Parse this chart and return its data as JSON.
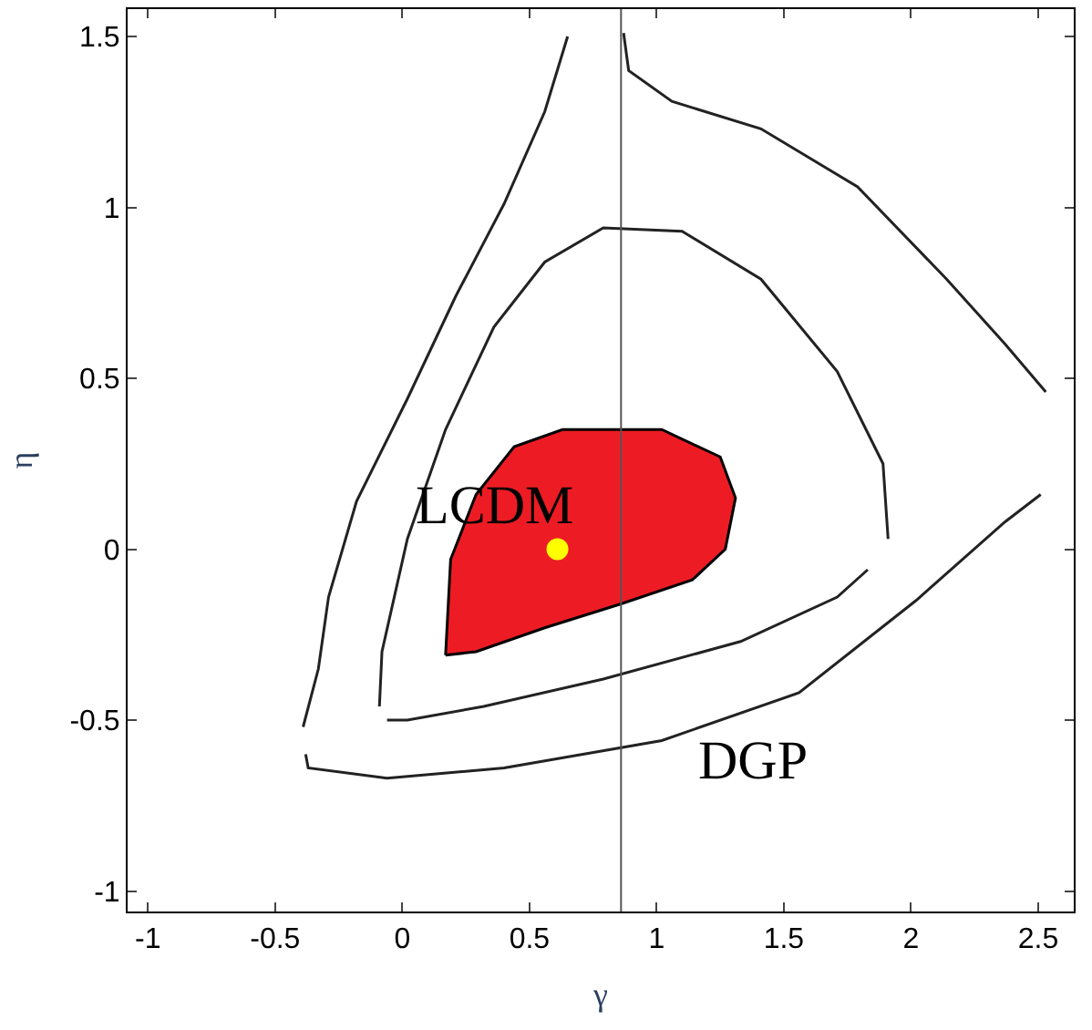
{
  "chart_data": {
    "type": "line",
    "xlabel": "γ",
    "ylabel": "η",
    "xlim": [
      -1.08,
      2.64
    ],
    "ylim": [
      -1.06,
      1.58
    ],
    "xticks": [
      -1,
      -0.5,
      0,
      0.5,
      1,
      1.5,
      2,
      2.5
    ],
    "yticks": [
      -1,
      -0.5,
      0,
      0.5,
      1,
      1.5
    ],
    "marker": "none",
    "line_style": "solid",
    "series": [
      {
        "type": "area",
        "color": "#ed1c24",
        "x": [
          0.17,
          0.19,
          0.29,
          0.44,
          0.63,
          1.02,
          1.25,
          1.31,
          1.27,
          1.14,
          0.86,
          0.56,
          0.29,
          0.17
        ],
        "values": [
          -0.31,
          -0.03,
          0.16,
          0.3,
          0.35,
          0.35,
          0.27,
          0.15,
          0.0,
          -0.09,
          -0.16,
          -0.23,
          -0.3,
          -0.31
        ]
      },
      {
        "color": "#222222",
        "x": [
          -0.09,
          -0.08,
          0.02,
          0.17,
          0.36,
          0.56,
          0.79,
          1.1,
          1.41,
          1.71,
          1.89,
          1.91
        ],
        "values": [
          -0.46,
          -0.3,
          0.03,
          0.35,
          0.65,
          0.84,
          0.94,
          0.93,
          0.79,
          0.52,
          0.25,
          0.03
        ]
      },
      {
        "color": "#222222",
        "x": [
          -0.06,
          0.02,
          0.32,
          0.79,
          1.33,
          1.71,
          1.83
        ],
        "values": [
          -0.5,
          -0.5,
          -0.46,
          -0.38,
          -0.27,
          -0.14,
          -0.06
        ]
      },
      {
        "color": "#222222",
        "x": [
          -0.39,
          -0.33,
          -0.29,
          -0.18,
          0.02,
          0.21,
          0.4,
          0.56,
          0.65
        ],
        "values": [
          -0.52,
          -0.35,
          -0.14,
          0.14,
          0.44,
          0.74,
          1.01,
          1.28,
          1.5
        ]
      },
      {
        "color": "#222222",
        "x": [
          -0.38,
          -0.37,
          -0.06,
          0.4,
          1.02,
          1.56,
          2.02,
          2.37,
          2.51
        ],
        "values": [
          -0.6,
          -0.64,
          -0.67,
          -0.64,
          -0.56,
          -0.42,
          -0.15,
          0.08,
          0.16
        ]
      },
      {
        "color": "#222222",
        "x": [
          0.87,
          0.89,
          1.06,
          1.41,
          1.79,
          2.14,
          2.37,
          2.53
        ],
        "values": [
          1.51,
          1.4,
          1.31,
          1.23,
          1.06,
          0.79,
          0.6,
          0.46
        ]
      },
      {
        "type": "scatter",
        "color": "#ffff00",
        "marker": "circle",
        "x": [
          0.61
        ],
        "values": [
          0
        ]
      }
    ],
    "ref_lines": [
      {
        "axis": "x",
        "value": 0.86,
        "color": "#555555"
      }
    ],
    "annotations": [
      "LCDM",
      "DGP"
    ]
  }
}
